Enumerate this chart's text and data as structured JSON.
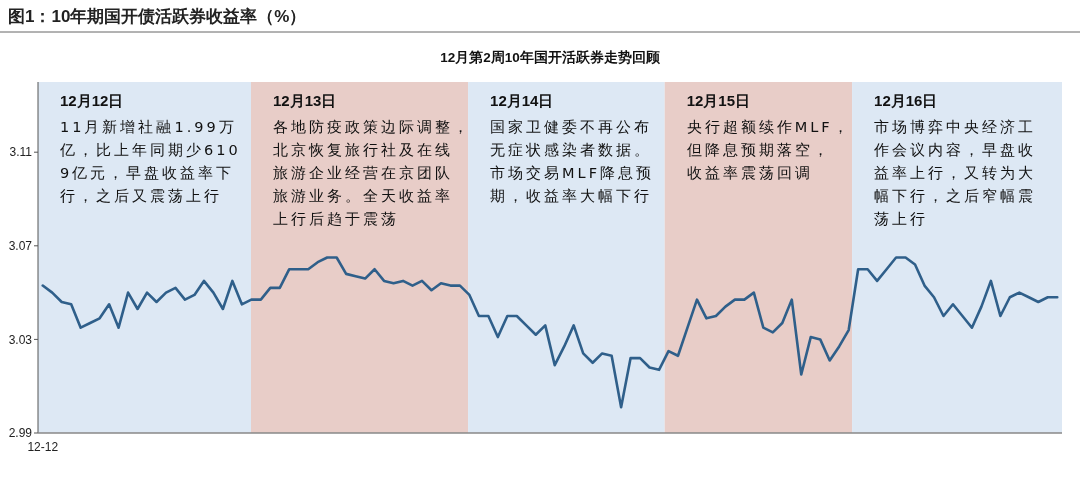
{
  "chart_data": {
    "type": "line",
    "title": "图1：10年期国开债活跃券收益率（%）",
    "subtitle": "12月第2周10年国开活跃券走势回顾",
    "categories": [
      "12-12",
      null,
      null,
      null,
      null,
      null,
      null,
      null,
      null,
      null,
      null,
      null,
      null,
      null,
      null,
      null,
      null,
      null,
      null,
      null,
      null,
      null,
      null,
      null,
      null,
      null,
      null,
      null,
      null,
      null,
      null,
      null,
      null,
      null,
      null,
      null,
      null,
      null,
      null,
      null,
      null,
      null,
      null,
      null,
      null,
      null,
      null,
      null,
      null,
      null,
      null,
      null,
      null,
      null,
      null,
      null,
      null,
      null,
      null,
      null,
      null,
      null,
      null,
      null,
      null,
      null,
      null,
      null,
      null,
      null,
      null,
      null,
      null,
      null,
      null,
      null,
      null,
      null,
      null,
      null,
      null,
      null,
      null,
      null,
      null,
      null,
      null,
      null,
      null,
      null,
      null,
      null,
      null,
      null,
      null,
      null,
      null,
      null,
      null,
      null,
      null,
      null,
      null,
      null,
      null,
      null,
      null,
      null
    ],
    "series": [
      {
        "color": "#2f5f8a",
        "values": [
          3.053,
          3.05,
          3.046,
          3.045,
          3.035,
          3.037,
          3.039,
          3.045,
          3.035,
          3.05,
          3.043,
          3.05,
          3.046,
          3.05,
          3.052,
          3.047,
          3.049,
          3.055,
          3.05,
          3.043,
          3.055,
          3.045,
          3.047,
          3.047,
          3.052,
          3.052,
          3.06,
          3.06,
          3.06,
          3.063,
          3.065,
          3.065,
          3.058,
          3.057,
          3.056,
          3.06,
          3.055,
          3.054,
          3.055,
          3.053,
          3.055,
          3.051,
          3.054,
          3.053,
          3.053,
          3.049,
          3.04,
          3.04,
          3.031,
          3.04,
          3.04,
          3.036,
          3.032,
          3.036,
          3.019,
          3.027,
          3.036,
          3.024,
          3.02,
          3.024,
          3.023,
          3.001,
          3.022,
          3.022,
          3.018,
          3.017,
          3.025,
          3.023,
          3.035,
          3.047,
          3.039,
          3.04,
          3.044,
          3.047,
          3.047,
          3.05,
          3.035,
          3.033,
          3.037,
          3.047,
          3.015,
          3.031,
          3.03,
          3.021,
          3.027,
          3.034,
          3.06,
          3.06,
          3.055,
          3.06,
          3.065,
          3.065,
          3.062,
          3.053,
          3.048,
          3.04,
          3.045,
          3.04,
          3.035,
          3.044,
          3.055,
          3.04,
          3.048,
          3.05,
          3.048,
          3.046,
          3.048,
          3.048
        ]
      }
    ],
    "ylim": [
      2.99,
      3.14
    ],
    "yticks": [
      2.99,
      3.03,
      3.07,
      3.11
    ],
    "annotations": [
      "12月12日",
      "11月新增社融1.99万亿，比上年同期少6109亿元，早盘收益率下行，之后又震荡上行",
      "12月13日",
      "各地防疫政策边际调整，北京恢复旅行社及在线旅游企业经营在京团队旅游业务。全天收益率上行后趋于震荡",
      "12月14日",
      "国家卫健委不再公布无症状感染者数据。市场交易MLF降息预期，收益率大幅下行",
      "12月15日",
      "央行超额续作MLF，但降息预期落空，收益率震荡回调",
      "12月16日",
      "市场博弈中央经济工作会议内容，早盘收益率上行，又转为大幅下行，之后窄幅震荡上行"
    ],
    "grid": false,
    "marker": "none",
    "line_style": "solid"
  }
}
